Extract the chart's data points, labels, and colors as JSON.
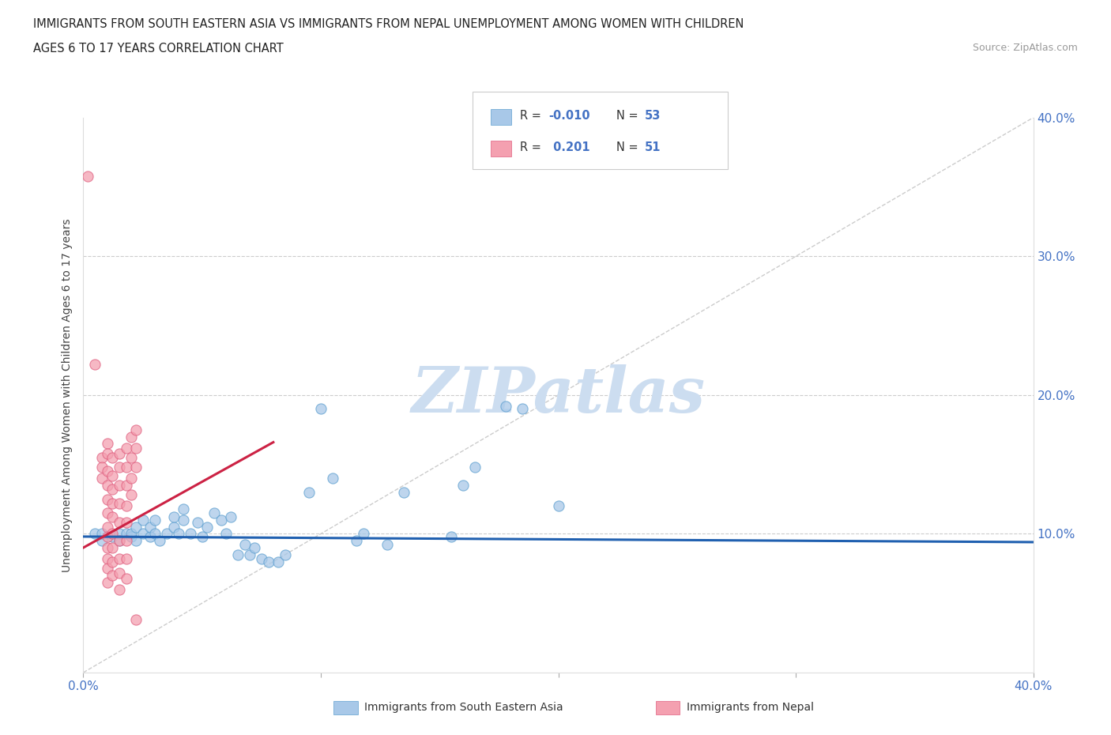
{
  "title_line1": "IMMIGRANTS FROM SOUTH EASTERN ASIA VS IMMIGRANTS FROM NEPAL UNEMPLOYMENT AMONG WOMEN WITH CHILDREN",
  "title_line2": "AGES 6 TO 17 YEARS CORRELATION CHART",
  "source": "Source: ZipAtlas.com",
  "ylabel": "Unemployment Among Women with Children Ages 6 to 17 years",
  "xlim": [
    0.0,
    0.4
  ],
  "ylim": [
    0.0,
    0.4
  ],
  "xtick_vals": [
    0.0,
    0.1,
    0.2,
    0.3,
    0.4
  ],
  "xtick_labels": [
    "0.0%",
    "",
    "",
    "",
    "40.0%"
  ],
  "ytick_vals": [
    0.1,
    0.2,
    0.3,
    0.4
  ],
  "ytick_labels": [
    "10.0%",
    "20.0%",
    "30.0%",
    "40.0%"
  ],
  "grid_vals": [
    0.1,
    0.2,
    0.3
  ],
  "blue_color": "#a8c8e8",
  "pink_color": "#f4a0b0",
  "blue_edge": "#5fa0d0",
  "pink_edge": "#e06080",
  "trend_blue_color": "#2060b0",
  "trend_pink_color": "#cc2244",
  "diagonal_color": "#cccccc",
  "watermark": "ZIPatlas",
  "watermark_color": "#ccddf0",
  "blue_scatter": [
    [
      0.005,
      0.1
    ],
    [
      0.008,
      0.095
    ],
    [
      0.008,
      0.1
    ],
    [
      0.012,
      0.098
    ],
    [
      0.015,
      0.095
    ],
    [
      0.015,
      0.1
    ],
    [
      0.018,
      0.1
    ],
    [
      0.02,
      0.098
    ],
    [
      0.02,
      0.1
    ],
    [
      0.022,
      0.095
    ],
    [
      0.022,
      0.105
    ],
    [
      0.025,
      0.1
    ],
    [
      0.025,
      0.11
    ],
    [
      0.028,
      0.098
    ],
    [
      0.028,
      0.105
    ],
    [
      0.03,
      0.1
    ],
    [
      0.03,
      0.11
    ],
    [
      0.032,
      0.095
    ],
    [
      0.035,
      0.1
    ],
    [
      0.038,
      0.105
    ],
    [
      0.038,
      0.112
    ],
    [
      0.04,
      0.1
    ],
    [
      0.042,
      0.11
    ],
    [
      0.042,
      0.118
    ],
    [
      0.045,
      0.1
    ],
    [
      0.048,
      0.108
    ],
    [
      0.05,
      0.098
    ],
    [
      0.052,
      0.105
    ],
    [
      0.055,
      0.115
    ],
    [
      0.058,
      0.11
    ],
    [
      0.06,
      0.1
    ],
    [
      0.062,
      0.112
    ],
    [
      0.065,
      0.085
    ],
    [
      0.068,
      0.092
    ],
    [
      0.07,
      0.085
    ],
    [
      0.072,
      0.09
    ],
    [
      0.075,
      0.082
    ],
    [
      0.078,
      0.08
    ],
    [
      0.082,
      0.08
    ],
    [
      0.085,
      0.085
    ],
    [
      0.095,
      0.13
    ],
    [
      0.1,
      0.19
    ],
    [
      0.105,
      0.14
    ],
    [
      0.115,
      0.095
    ],
    [
      0.118,
      0.1
    ],
    [
      0.128,
      0.092
    ],
    [
      0.135,
      0.13
    ],
    [
      0.155,
      0.098
    ],
    [
      0.16,
      0.135
    ],
    [
      0.165,
      0.148
    ],
    [
      0.178,
      0.192
    ],
    [
      0.185,
      0.19
    ],
    [
      0.2,
      0.12
    ]
  ],
  "pink_scatter": [
    [
      0.002,
      0.358
    ],
    [
      0.005,
      0.222
    ],
    [
      0.008,
      0.155
    ],
    [
      0.008,
      0.148
    ],
    [
      0.008,
      0.14
    ],
    [
      0.01,
      0.165
    ],
    [
      0.01,
      0.158
    ],
    [
      0.01,
      0.145
    ],
    [
      0.01,
      0.135
    ],
    [
      0.01,
      0.125
    ],
    [
      0.01,
      0.115
    ],
    [
      0.01,
      0.105
    ],
    [
      0.01,
      0.098
    ],
    [
      0.01,
      0.09
    ],
    [
      0.01,
      0.082
    ],
    [
      0.01,
      0.075
    ],
    [
      0.01,
      0.065
    ],
    [
      0.012,
      0.155
    ],
    [
      0.012,
      0.142
    ],
    [
      0.012,
      0.132
    ],
    [
      0.012,
      0.122
    ],
    [
      0.012,
      0.112
    ],
    [
      0.012,
      0.1
    ],
    [
      0.012,
      0.09
    ],
    [
      0.012,
      0.08
    ],
    [
      0.012,
      0.07
    ],
    [
      0.015,
      0.158
    ],
    [
      0.015,
      0.148
    ],
    [
      0.015,
      0.135
    ],
    [
      0.015,
      0.122
    ],
    [
      0.015,
      0.108
    ],
    [
      0.015,
      0.095
    ],
    [
      0.015,
      0.082
    ],
    [
      0.015,
      0.072
    ],
    [
      0.015,
      0.06
    ],
    [
      0.018,
      0.162
    ],
    [
      0.018,
      0.148
    ],
    [
      0.018,
      0.135
    ],
    [
      0.018,
      0.12
    ],
    [
      0.018,
      0.108
    ],
    [
      0.018,
      0.095
    ],
    [
      0.018,
      0.082
    ],
    [
      0.018,
      0.068
    ],
    [
      0.02,
      0.17
    ],
    [
      0.02,
      0.155
    ],
    [
      0.02,
      0.14
    ],
    [
      0.02,
      0.128
    ],
    [
      0.022,
      0.175
    ],
    [
      0.022,
      0.162
    ],
    [
      0.022,
      0.148
    ],
    [
      0.022,
      0.038
    ]
  ],
  "blue_trend": [
    -0.01,
    0.098
  ],
  "pink_trend_x": [
    0.0,
    0.08
  ],
  "pink_trend_y": [
    0.09,
    0.166
  ]
}
